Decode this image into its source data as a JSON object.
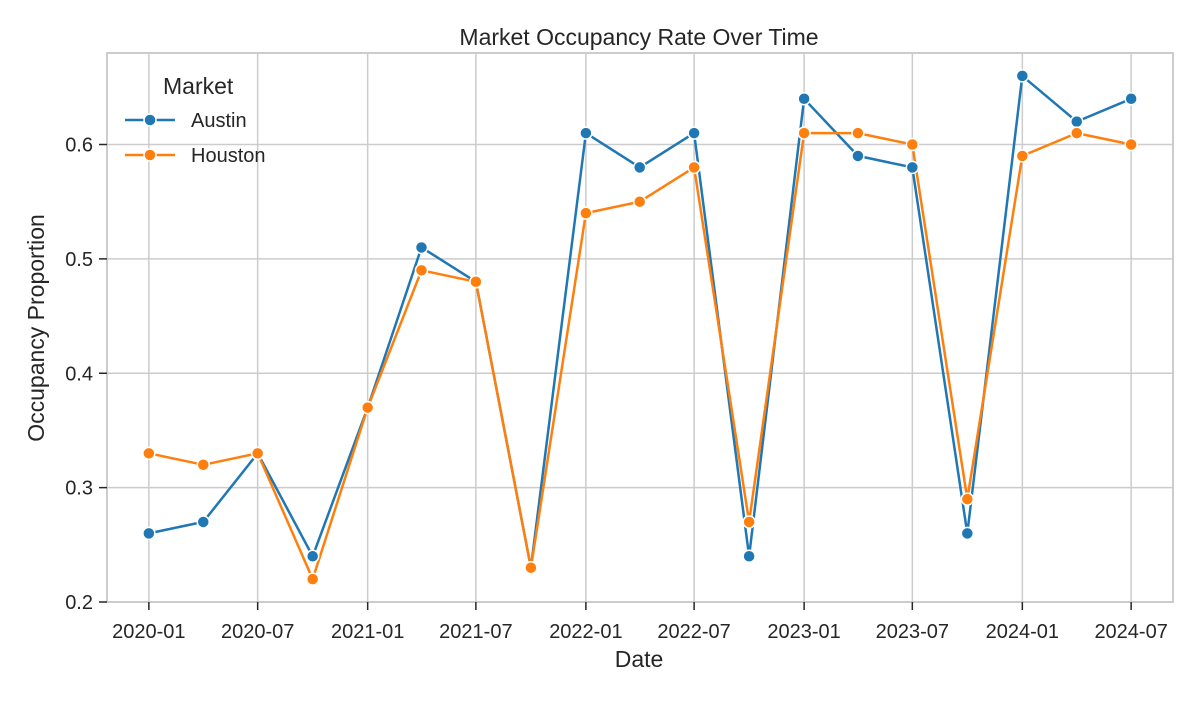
{
  "chart_data": {
    "type": "line",
    "title": "Market Occupancy Rate Over Time",
    "xlabel": "Date",
    "ylabel": "Occupancy Proportion",
    "x": [
      "2020-01-01",
      "2020-04-01",
      "2020-07-01",
      "2020-10-01",
      "2021-01-01",
      "2021-04-01",
      "2021-07-01",
      "2021-10-01",
      "2022-01-01",
      "2022-04-01",
      "2022-07-01",
      "2022-10-01",
      "2023-01-01",
      "2023-04-01",
      "2023-07-01",
      "2023-10-01",
      "2024-01-01",
      "2024-04-01",
      "2024-07-01"
    ],
    "xticks": [
      "2020-01",
      "2020-07",
      "2021-01",
      "2021-07",
      "2022-01",
      "2022-07",
      "2023-01",
      "2023-07",
      "2024-01",
      "2024-07"
    ],
    "xlim": [
      "2019-10-23",
      "2024-09-09"
    ],
    "ylim": [
      0.2,
      0.68
    ],
    "yticks": [
      "0.2",
      "0.3",
      "0.4",
      "0.5",
      "0.6"
    ],
    "grid": true,
    "legend": {
      "title": "Market",
      "position": "top-left"
    },
    "series": [
      {
        "name": "Austin",
        "color": "#1f77b4",
        "values": [
          0.26,
          0.27,
          0.33,
          0.24,
          0.37,
          0.51,
          0.48,
          0.23,
          0.61,
          0.58,
          0.61,
          0.24,
          0.64,
          0.59,
          0.58,
          0.26,
          0.66,
          0.62,
          0.64
        ]
      },
      {
        "name": "Houston",
        "color": "#ff7f0e",
        "values": [
          0.33,
          0.32,
          0.33,
          0.22,
          0.37,
          0.49,
          0.48,
          0.23,
          0.54,
          0.55,
          0.58,
          0.27,
          0.61,
          0.61,
          0.6,
          0.29,
          0.59,
          0.61,
          0.6
        ]
      }
    ]
  }
}
